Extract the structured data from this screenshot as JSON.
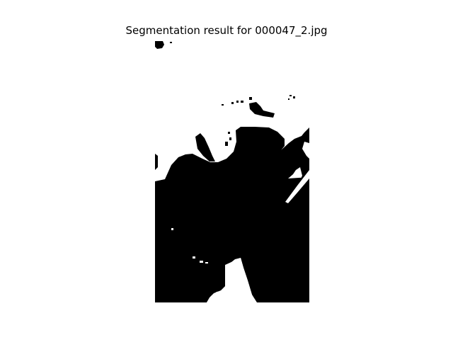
{
  "figure": {
    "title": "Segmentation result for 000047_2.jpg"
  },
  "mask": {
    "foreground_color": "#000000",
    "background_color": "#ffffff"
  }
}
